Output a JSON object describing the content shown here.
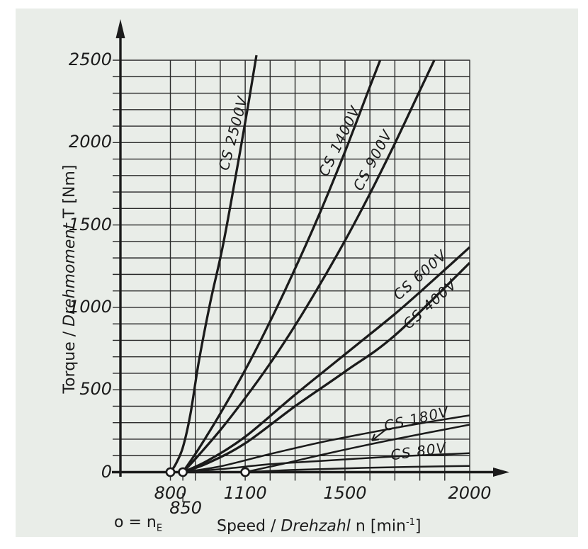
{
  "panel": {
    "outer_bg": "#ffffff",
    "bg": "#e9ede8",
    "ink": "#1b1b1b",
    "grid": "#2a2a2a"
  },
  "y_axis": {
    "title_en": "Torque / ",
    "title_de": "Drehmoment",
    "title_rest": " T [Nm]",
    "ticks": [
      {
        "label": "0",
        "value": 0
      },
      {
        "label": "500",
        "value": 500
      },
      {
        "label": "1000",
        "value": 1000
      },
      {
        "label": "1500",
        "value": 1500
      },
      {
        "label": "2000",
        "value": 2000
      },
      {
        "label": "2500",
        "value": 2500
      }
    ]
  },
  "x_axis": {
    "title_en": "Speed / ",
    "title_de": "Drehzahl",
    "title_mid": " n [min",
    "title_sup": "-1",
    "title_close": "]",
    "ticks": [
      {
        "label": "800",
        "value": 800,
        "row": 1
      },
      {
        "label": "850",
        "value": 850,
        "row": 2
      },
      {
        "label": "1100",
        "value": 1100,
        "row": 1
      },
      {
        "label": "1500",
        "value": 1500,
        "row": 1
      },
      {
        "label": "2000",
        "value": 2000,
        "row": 1
      }
    ]
  },
  "legend_note": {
    "prefix": "o = n",
    "sub": "E"
  },
  "chart_data": {
    "type": "line",
    "title": "",
    "xlabel": "Speed / Drehzahl n [min-1]",
    "ylabel": "Torque / Drehmoment T [Nm]",
    "xlim": [
      800,
      2000
    ],
    "ylim": [
      0,
      2500
    ],
    "grid": true,
    "x_grid_step": 100,
    "y_grid_step": 100,
    "x_extra_tick": 850,
    "engagement_speeds": [
      800,
      850,
      1100
    ],
    "series": [
      {
        "name": "CS 2500V",
        "points": [
          [
            800,
            0
          ],
          [
            822,
            50
          ],
          [
            850,
            150
          ],
          [
            880,
            350
          ],
          [
            915,
            680
          ],
          [
            960,
            1030
          ],
          [
            1010,
            1370
          ],
          [
            1060,
            1780
          ],
          [
            1110,
            2210
          ],
          [
            1145,
            2530
          ]
        ],
        "label": {
          "n": 1051,
          "T": 2057,
          "angle": -75
        }
      },
      {
        "name": "CS 1400V",
        "points": [
          [
            850,
            0
          ],
          [
            900,
            110
          ],
          [
            950,
            230
          ],
          [
            1000,
            355
          ],
          [
            1100,
            620
          ],
          [
            1200,
            915
          ],
          [
            1300,
            1235
          ],
          [
            1400,
            1575
          ],
          [
            1500,
            1945
          ],
          [
            1600,
            2340
          ],
          [
            1641,
            2500
          ]
        ],
        "label": {
          "n": 1478,
          "T": 2010,
          "angle": -64
        }
      },
      {
        "name": "CS 900V",
        "points": [
          [
            850,
            0
          ],
          [
            900,
            80
          ],
          [
            1000,
            255
          ],
          [
            1100,
            450
          ],
          [
            1200,
            660
          ],
          [
            1300,
            890
          ],
          [
            1400,
            1140
          ],
          [
            1500,
            1405
          ],
          [
            1600,
            1690
          ],
          [
            1700,
            1995
          ],
          [
            1800,
            2315
          ],
          [
            1858,
            2500
          ]
        ],
        "label": {
          "n": 1612,
          "T": 1895,
          "angle": -62
        }
      },
      {
        "name": "CS 600V",
        "points": [
          [
            850,
            0
          ],
          [
            950,
            70
          ],
          [
            1100,
            215
          ],
          [
            1300,
            470
          ],
          [
            1500,
            715
          ],
          [
            1700,
            960
          ],
          [
            1850,
            1160
          ],
          [
            2000,
            1365
          ]
        ],
        "label": {
          "n": 1802,
          "T": 1197,
          "angle": -42
        }
      },
      {
        "name": "CS 400V",
        "points": [
          [
            850,
            0
          ],
          [
            950,
            55
          ],
          [
            1100,
            175
          ],
          [
            1300,
            400
          ],
          [
            1500,
            610
          ],
          [
            1700,
            830
          ],
          [
            2000,
            1270
          ]
        ],
        "label": {
          "n": 1842,
          "T": 1020,
          "angle": -42
        }
      },
      {
        "name": "CS 180V",
        "points": [
          [
            850,
            0
          ],
          [
            1000,
            35
          ],
          [
            1200,
            110
          ],
          [
            1400,
            180
          ],
          [
            1600,
            240
          ],
          [
            1800,
            295
          ],
          [
            2000,
            345
          ]
        ],
        "points2": [
          [
            1100,
            0
          ],
          [
            1250,
            50
          ],
          [
            1450,
            120
          ],
          [
            1700,
            200
          ],
          [
            2000,
            288
          ]
        ],
        "label": {
          "n": 1787,
          "T": 325,
          "angle": -13
        }
      },
      {
        "name": "CS 80V",
        "points": [
          [
            850,
            0
          ],
          [
            1000,
            18
          ],
          [
            1200,
            48
          ],
          [
            1400,
            68
          ],
          [
            1700,
            95
          ],
          [
            2000,
            115
          ]
        ],
        "points2": [
          [
            1100,
            0
          ],
          [
            1300,
            14
          ],
          [
            1600,
            27
          ],
          [
            2000,
            38
          ]
        ],
        "label": {
          "n": 1795,
          "T": 128,
          "angle": -8
        }
      }
    ],
    "annotation_arrow": {
      "from_n": 1672,
      "from_T": 267,
      "to_n": 1608,
      "to_T": 192
    }
  }
}
